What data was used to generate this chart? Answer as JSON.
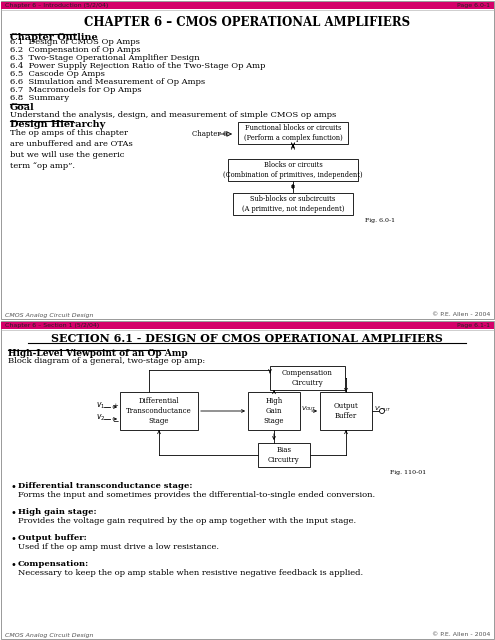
{
  "page_bg": "#ffffff",
  "pink_bar_color": "#d4006a",
  "page1": {
    "header_left": "Chapter 6 – Introduction (5/2/04)",
    "header_right": "Page 6.0-1",
    "title": "CHAPTER 6 – CMOS OPERATIONAL AMPLIFIERS",
    "outline_heading": "Chapter Outline",
    "outline_items": [
      "6.1  Design of CMOS Op Amps",
      "6.2  Compensation of Op Amps",
      "6.3  Two-Stage Operational Amplifier Design",
      "6.4  Power Supply Rejection Ratio of the Two-Stage Op Amp",
      "6.5  Cascode Op Amps",
      "6.6  Simulation and Measurement of Op Amps",
      "6.7  Macromodels for Op Amps",
      "6.8  Summary"
    ],
    "goal_heading": "Goal",
    "goal_text": "Understand the analysis, design, and measurement of simple CMOS op amps",
    "design_heading": "Design Hierarchy",
    "design_text": "The op amps of this chapter\nare unbuffered and are OTAs\nbut we will use the generic\nterm “op amp”.",
    "chapter6_label": "Chapter 6",
    "box1": "Functional blocks or circuits\n(Perform a complex function)",
    "box2": "Blocks or circuits\n(Combination of primitives, independent)",
    "box3": "Sub-blocks or subcircuits\n(A primitive, not independent)",
    "fig_label": "Fig. 6.0-1",
    "footer_left": "CMOS Analog Circuit Design",
    "footer_right": "© P.E. Allen - 2004"
  },
  "page2": {
    "header_left": "Chapter 6 – Section 1 (5/2/04)",
    "header_right": "Page 6.1-1",
    "title": "SECTION 6.1 - DESIGN OF CMOS OPERATIONAL AMPLIFIERS",
    "subheading": "High-Level Viewpoint of an Op Amp",
    "intro_text": "Block diagram of a general, two-stage op amp:",
    "box_comp": "Compensation\nCircuitry",
    "box_diff": "Differential\nTransconductance\nStage",
    "box_high": "High\nGain\nStage",
    "box_out": "Output\nBuffer",
    "box_bias": "Bias\nCircuitry",
    "fig2_label": "Fig. 110-01",
    "bullets": [
      {
        "head": "Differential transconductance stage:",
        "body": "    Forms the input and sometimes provides the differential-to-single ended conversion."
      },
      {
        "head": "High gain stage:",
        "body": "    Provides the voltage gain required by the op amp together with the input stage."
      },
      {
        "head": "Output buffer:",
        "body": "    Used if the op amp must drive a low resistance."
      },
      {
        "head": "Compensation:",
        "body": "    Necessary to keep the op amp stable when resistive negative feedback is applied."
      }
    ],
    "footer_left": "CMOS Analog Circuit Design",
    "footer_right": "© P.E. Allen - 2004"
  }
}
